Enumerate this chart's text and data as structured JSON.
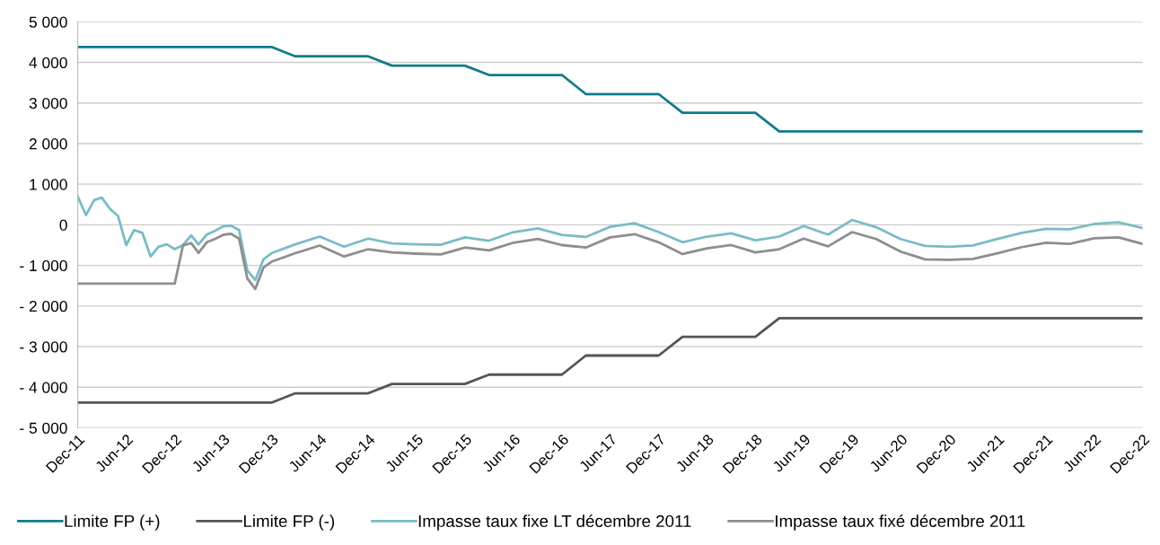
{
  "chart_data": {
    "type": "line",
    "xlim": [
      "2011-12",
      "2022-12"
    ],
    "xticks": [
      {
        "value": "2011-12",
        "label": "Dec-11"
      },
      {
        "value": "2012-06",
        "label": "Jun-12"
      },
      {
        "value": "2012-12",
        "label": "Dec-12"
      },
      {
        "value": "2013-06",
        "label": "Jun-13"
      },
      {
        "value": "2013-12",
        "label": "Dec-13"
      },
      {
        "value": "2014-06",
        "label": "Jun-14"
      },
      {
        "value": "2014-12",
        "label": "Dec-14"
      },
      {
        "value": "2015-06",
        "label": "Jun-15"
      },
      {
        "value": "2015-12",
        "label": "Dec-15"
      },
      {
        "value": "2016-06",
        "label": "Jun-16"
      },
      {
        "value": "2016-12",
        "label": "Dec-16"
      },
      {
        "value": "2017-06",
        "label": "Jun-17"
      },
      {
        "value": "2017-12",
        "label": "Dec-17"
      },
      {
        "value": "2018-06",
        "label": "Jun-18"
      },
      {
        "value": "2018-12",
        "label": "Dec-18"
      },
      {
        "value": "2019-06",
        "label": "Jun-19"
      },
      {
        "value": "2019-12",
        "label": "Dec-19"
      },
      {
        "value": "2020-06",
        "label": "Jun-20"
      },
      {
        "value": "2020-12",
        "label": "Dec-20"
      },
      {
        "value": "2021-06",
        "label": "Jun-21"
      },
      {
        "value": "2021-12",
        "label": "Dec-21"
      },
      {
        "value": "2022-06",
        "label": "Jun-22"
      },
      {
        "value": "2022-12",
        "label": "Dec-22"
      }
    ],
    "ylim": [
      -5000,
      5000
    ],
    "yticks": [
      {
        "value": -5000,
        "label": "- 5 000"
      },
      {
        "value": -4000,
        "label": "- 4 000"
      },
      {
        "value": -3000,
        "label": "- 3 000"
      },
      {
        "value": -2000,
        "label": "- 2 000"
      },
      {
        "value": -1000,
        "label": "- 1 000"
      },
      0,
      {
        "value": 1000,
        "label": "1 000"
      },
      {
        "value": 2000,
        "label": "2 000"
      },
      {
        "value": 3000,
        "label": "3 000"
      },
      {
        "value": 4000,
        "label": "4 000"
      },
      {
        "value": 5000,
        "label": "5 000"
      }
    ],
    "grid": "y",
    "legend": "bottom",
    "series": [
      {
        "name": "Limite FP (+)",
        "color": "#127b8a",
        "x": [
          "2011-12",
          "2012-03",
          "2012-06",
          "2012-09",
          "2012-12",
          "2013-03",
          "2013-06",
          "2013-09",
          "2013-12",
          "2014-03",
          "2014-06",
          "2014-09",
          "2014-12",
          "2015-03",
          "2015-06",
          "2015-09",
          "2015-12",
          "2016-03",
          "2016-06",
          "2016-09",
          "2016-12",
          "2017-03",
          "2017-06",
          "2017-09",
          "2017-12",
          "2018-03",
          "2018-06",
          "2018-09",
          "2018-12",
          "2019-03",
          "2019-06",
          "2019-09",
          "2019-12",
          "2020-03",
          "2020-06",
          "2020-09",
          "2020-12",
          "2021-03",
          "2021-06",
          "2021-09",
          "2021-12",
          "2022-03",
          "2022-06",
          "2022-09",
          "2022-12"
        ],
        "values": [
          4380,
          4380,
          4380,
          4380,
          4380,
          4380,
          4380,
          4380,
          4380,
          4150,
          4150,
          4150,
          4150,
          3920,
          3920,
          3920,
          3920,
          3690,
          3690,
          3690,
          3690,
          3220,
          3220,
          3220,
          3220,
          2760,
          2760,
          2760,
          2760,
          2300,
          2300,
          2300,
          2300,
          2300,
          2300,
          2300,
          2300,
          2300,
          2300,
          2300,
          2300,
          2300,
          2300,
          2300,
          2300
        ]
      },
      {
        "name": "Limite FP (-)",
        "color": "#555555",
        "x": [
          "2011-12",
          "2012-03",
          "2012-06",
          "2012-09",
          "2012-12",
          "2013-03",
          "2013-06",
          "2013-09",
          "2013-12",
          "2014-03",
          "2014-06",
          "2014-09",
          "2014-12",
          "2015-03",
          "2015-06",
          "2015-09",
          "2015-12",
          "2016-03",
          "2016-06",
          "2016-09",
          "2016-12",
          "2017-03",
          "2017-06",
          "2017-09",
          "2017-12",
          "2018-03",
          "2018-06",
          "2018-09",
          "2018-12",
          "2019-03",
          "2019-06",
          "2019-09",
          "2019-12",
          "2020-03",
          "2020-06",
          "2020-09",
          "2020-12",
          "2021-03",
          "2021-06",
          "2021-09",
          "2021-12",
          "2022-03",
          "2022-06",
          "2022-09",
          "2022-12"
        ],
        "values": [
          -4380,
          -4380,
          -4380,
          -4380,
          -4380,
          -4380,
          -4380,
          -4380,
          -4380,
          -4150,
          -4150,
          -4150,
          -4150,
          -3920,
          -3920,
          -3920,
          -3920,
          -3690,
          -3690,
          -3690,
          -3690,
          -3220,
          -3220,
          -3220,
          -3220,
          -2760,
          -2760,
          -2760,
          -2760,
          -2300,
          -2300,
          -2300,
          -2300,
          -2300,
          -2300,
          -2300,
          -2300,
          -2300,
          -2300,
          -2300,
          -2300,
          -2300,
          -2300,
          -2300,
          -2300
        ]
      },
      {
        "name": "Impasse taux fixe LT décembre 2011",
        "color": "#79bcc6",
        "x": [
          "2011-12",
          "2012-01",
          "2012-02",
          "2012-03",
          "2012-04",
          "2012-05",
          "2012-06",
          "2012-07",
          "2012-08",
          "2012-09",
          "2012-10",
          "2012-11",
          "2012-12",
          "2013-01",
          "2013-02",
          "2013-03",
          "2013-04",
          "2013-05",
          "2013-06",
          "2013-07",
          "2013-08",
          "2013-09",
          "2013-10",
          "2013-11",
          "2013-12",
          "2014-03",
          "2014-06",
          "2014-09",
          "2014-12",
          "2015-03",
          "2015-06",
          "2015-09",
          "2015-12",
          "2016-03",
          "2016-06",
          "2016-09",
          "2016-12",
          "2017-03",
          "2017-06",
          "2017-09",
          "2017-12",
          "2018-03",
          "2018-06",
          "2018-09",
          "2018-12",
          "2019-03",
          "2019-06",
          "2019-09",
          "2019-12",
          "2020-03",
          "2020-06",
          "2020-09",
          "2020-12",
          "2021-03",
          "2021-06",
          "2021-09",
          "2021-12",
          "2022-03",
          "2022-06",
          "2022-09",
          "2022-12"
        ],
        "values": [
          700,
          240,
          610,
          670,
          390,
          220,
          -500,
          -130,
          -200,
          -780,
          -540,
          -480,
          -600,
          -500,
          -260,
          -480,
          -240,
          -150,
          -40,
          -20,
          -130,
          -1120,
          -1360,
          -850,
          -700,
          -480,
          -290,
          -540,
          -340,
          -460,
          -480,
          -490,
          -310,
          -390,
          -180,
          -90,
          -250,
          -300,
          -50,
          40,
          -180,
          -430,
          -290,
          -210,
          -380,
          -290,
          -30,
          -240,
          120,
          -60,
          -350,
          -520,
          -540,
          -510,
          -350,
          -200,
          -100,
          -110,
          20,
          60,
          -80
        ]
      },
      {
        "name": "Impasse taux fixé décembre 2011",
        "color": "#8e8e8e",
        "x": [
          "2011-12",
          "2012-01",
          "2012-02",
          "2012-03",
          "2012-04",
          "2012-05",
          "2012-06",
          "2012-07",
          "2012-08",
          "2012-09",
          "2012-10",
          "2012-11",
          "2012-12",
          "2013-01",
          "2013-02",
          "2013-03",
          "2013-04",
          "2013-05",
          "2013-06",
          "2013-07",
          "2013-08",
          "2013-09",
          "2013-10",
          "2013-11",
          "2013-12",
          "2014-03",
          "2014-06",
          "2014-09",
          "2014-12",
          "2015-03",
          "2015-06",
          "2015-09",
          "2015-12",
          "2016-03",
          "2016-06",
          "2016-09",
          "2016-12",
          "2017-03",
          "2017-06",
          "2017-09",
          "2017-12",
          "2018-03",
          "2018-06",
          "2018-09",
          "2018-12",
          "2019-03",
          "2019-06",
          "2019-09",
          "2019-12",
          "2020-03",
          "2020-06",
          "2020-09",
          "2020-12",
          "2021-03",
          "2021-06",
          "2021-09",
          "2021-12",
          "2022-03",
          "2022-06",
          "2022-09",
          "2022-12"
        ],
        "values": [
          -1450,
          -1450,
          -1450,
          -1450,
          -1450,
          -1450,
          -1450,
          -1450,
          -1450,
          -1450,
          -1450,
          -1450,
          -1450,
          -510,
          -450,
          -690,
          -430,
          -350,
          -250,
          -220,
          -340,
          -1320,
          -1580,
          -1050,
          -910,
          -700,
          -510,
          -780,
          -600,
          -680,
          -710,
          -730,
          -560,
          -630,
          -440,
          -350,
          -500,
          -560,
          -310,
          -230,
          -430,
          -720,
          -580,
          -500,
          -680,
          -600,
          -340,
          -530,
          -180,
          -350,
          -660,
          -850,
          -860,
          -840,
          -700,
          -550,
          -440,
          -470,
          -330,
          -310,
          -470
        ]
      }
    ]
  }
}
